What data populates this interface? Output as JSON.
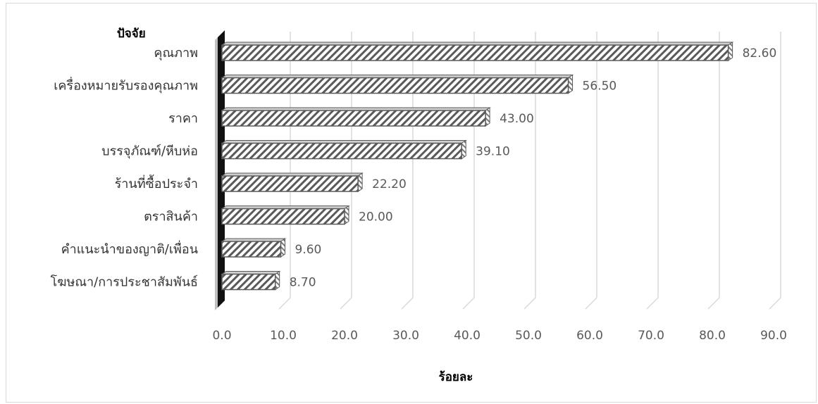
{
  "chart_data": {
    "type": "bar",
    "orientation": "horizontal",
    "style": "3d-hatched",
    "y_axis_title": "ปัจจัย",
    "xlabel": "ร้อยละ",
    "categories": [
      "คุณภาพ",
      "เครื่องหมายรับรองคุณภาพ",
      "ราคา",
      "บรรจุภัณฑ์/หีบห่อ",
      "ร้านที่ซื้อประจำ",
      "ตราสินค้า",
      "คำแนะนำของญาติ/เพื่อน",
      "โฆษณา/การประชาสัมพันธ์"
    ],
    "values": [
      82.6,
      56.5,
      43.0,
      39.1,
      22.2,
      20.0,
      9.6,
      8.7
    ],
    "value_labels": [
      "82.60",
      "56.50",
      "43.00",
      "39.10",
      "22.20",
      "20.00",
      "9.60",
      "8.70"
    ],
    "xlim": [
      0,
      90
    ],
    "xticks": [
      "0.0",
      "10.0",
      "20.0",
      "30.0",
      "40.0",
      "50.0",
      "60.0",
      "70.0",
      "80.0",
      "90.0"
    ],
    "grid": true,
    "legend": "none",
    "colors": {
      "bar_stroke": "#5a5a5a",
      "hatch": "#5a5a5a",
      "grid": "#d9d9d9",
      "wall": "#111111"
    }
  }
}
